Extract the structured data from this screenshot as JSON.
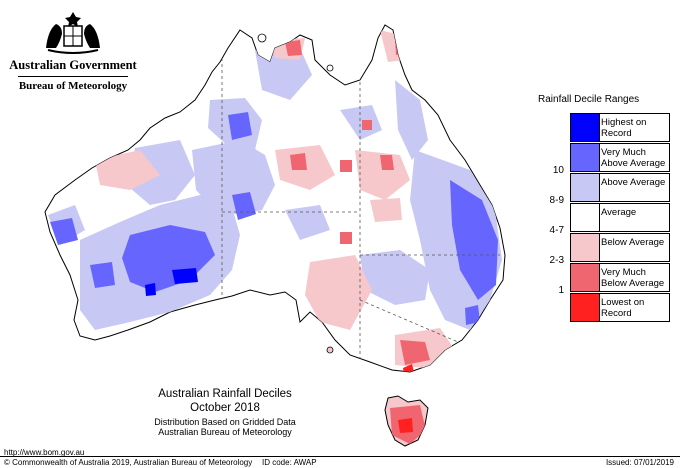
{
  "header": {
    "org_name": "Australian Government",
    "agency_name": "Bureau of Meteorology",
    "crest_icon": "commonwealth-coat-of-arms"
  },
  "title": {
    "line1": "Australian Rainfall Deciles",
    "line2": "October 2018",
    "line3": "Distribution Based on Gridded Data",
    "line4": "Australian Bureau of Meteorology"
  },
  "legend": {
    "title": "Rainfall Decile Ranges",
    "items": [
      {
        "range": "",
        "label": "Highest on Record",
        "color": "#0000ff"
      },
      {
        "range": "10",
        "label": "Very Much Above Average",
        "color": "#6666ff"
      },
      {
        "range": "8-9",
        "label": "Above Average",
        "color": "#c8c8f4"
      },
      {
        "range": "4-7",
        "label": "Average",
        "color": "#ffffff"
      },
      {
        "range": "2-3",
        "label": "Below Average",
        "color": "#f6c8cc"
      },
      {
        "range": "1",
        "label": "Very Much Below Average",
        "color": "#f06670"
      },
      {
        "range": "",
        "label": "Lowest on Record",
        "color": "#ff2020"
      }
    ]
  },
  "footer": {
    "url": "http://www.bom.gov.au",
    "copyright": "© Commonwealth of Australia 2019, Australian Bureau of Meteorology",
    "id_code": "ID code: AWAP",
    "issued": "Issued: 07/01/2019"
  }
}
